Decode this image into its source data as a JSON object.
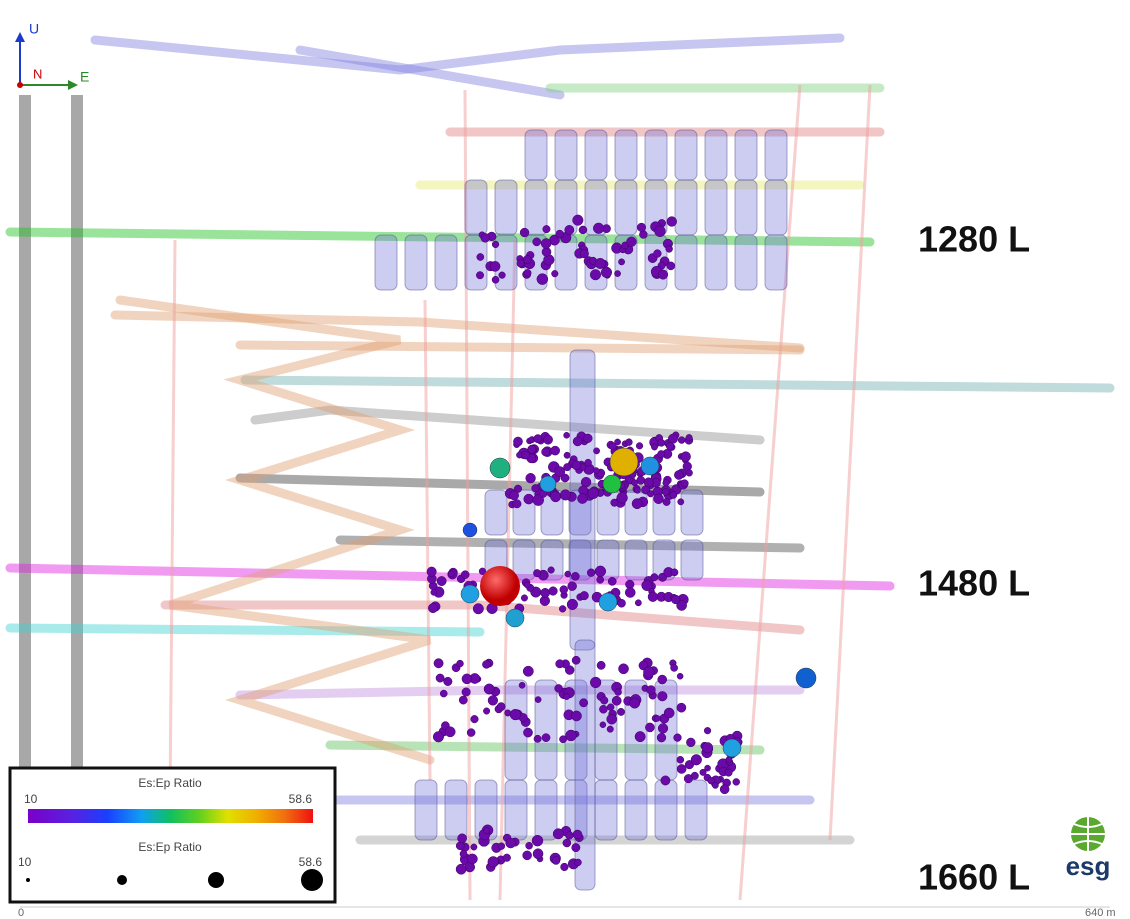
{
  "orientation": {
    "up": "U",
    "north": "N",
    "east": "E"
  },
  "levels": [
    {
      "label": "1280 L"
    },
    {
      "label": "1480 L"
    },
    {
      "label": "1660 L"
    }
  ],
  "legend": {
    "color_title": "Es:Ep Ratio",
    "color_min": "10",
    "color_max": "58.6",
    "size_title": "Es:Ep Ratio",
    "size_min": "10",
    "size_max": "58.6"
  },
  "scale": {
    "start": "0",
    "end": "640 m"
  },
  "logo": "esg"
}
